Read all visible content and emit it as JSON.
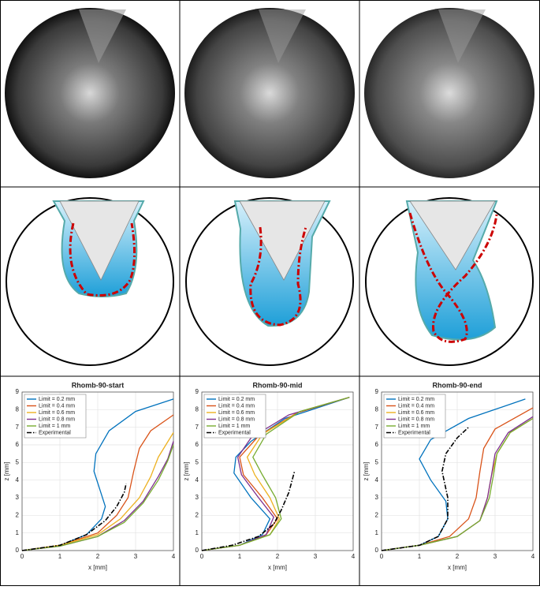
{
  "chart_data": [
    {
      "type": "line",
      "title": "Rhomb-90-start",
      "xlabel": "x [mm]",
      "ylabel": "z [mm]",
      "xlim": [
        0,
        4
      ],
      "ylim": [
        0,
        9
      ],
      "xticks": [
        0,
        1,
        2,
        3,
        4
      ],
      "yticks": [
        0,
        1,
        2,
        3,
        4,
        5,
        6,
        7,
        8,
        9
      ],
      "grid": true,
      "legend": "upper left",
      "series": [
        {
          "name": "Limit = 0.2 mm",
          "color": "#0072BD",
          "linestyle": "solid",
          "x": [
            0,
            1,
            1.7,
            2.1,
            2.2,
            2.05,
            1.9,
            1.95,
            2.3,
            3,
            4
          ],
          "values": [
            0,
            0.3,
            0.9,
            1.8,
            2.5,
            3.5,
            4.5,
            5.5,
            6.8,
            7.9,
            8.6
          ]
        },
        {
          "name": "Limit = 0.4 mm",
          "color": "#D95319",
          "linestyle": "solid",
          "x": [
            0,
            1,
            2,
            2.5,
            2.8,
            2.95,
            3.1,
            3.4,
            4
          ],
          "values": [
            0,
            0.3,
            1,
            2,
            3,
            4.5,
            5.8,
            6.8,
            7.7
          ]
        },
        {
          "name": "Limit = 0.6 mm",
          "color": "#EDB120",
          "linestyle": "solid",
          "x": [
            0,
            1,
            2,
            2.6,
            3.1,
            3.4,
            3.6,
            4
          ],
          "values": [
            0,
            0.3,
            0.9,
            1.8,
            3,
            4.2,
            5.3,
            6.7
          ]
        },
        {
          "name": "Limit = 0.8 mm",
          "color": "#7E2F8E",
          "linestyle": "solid",
          "x": [
            0,
            1,
            2,
            2.7,
            3.2,
            3.6,
            3.85,
            4
          ],
          "values": [
            0,
            0.25,
            0.8,
            1.7,
            2.8,
            4.2,
            5.2,
            6.2
          ]
        },
        {
          "name": "Limit = 1 mm",
          "color": "#77AC30",
          "linestyle": "solid",
          "x": [
            0,
            1,
            2,
            2.7,
            3.2,
            3.6,
            3.85,
            4
          ],
          "values": [
            0,
            0.25,
            0.8,
            1.6,
            2.7,
            4,
            5.1,
            6
          ]
        },
        {
          "name": "Experimental",
          "color": "#000000",
          "linestyle": "dashdot",
          "x": [
            0,
            1,
            1.7,
            2.2,
            2.5,
            2.7,
            2.75
          ],
          "values": [
            0,
            0.3,
            0.9,
            1.7,
            2.5,
            3.3,
            3.8
          ]
        }
      ]
    },
    {
      "type": "line",
      "title": "Rhomb-90-mid",
      "xlabel": "x [mm]",
      "ylabel": "z [mm]",
      "xlim": [
        0,
        4
      ],
      "ylim": [
        0,
        9
      ],
      "xticks": [
        0,
        1,
        2,
        3,
        4
      ],
      "yticks": [
        0,
        1,
        2,
        3,
        4,
        5,
        6,
        7,
        8,
        9
      ],
      "grid": true,
      "legend": "upper left",
      "series": [
        {
          "name": "Limit = 0.2 mm",
          "color": "#0072BD",
          "linestyle": "solid",
          "x": [
            0,
            1,
            1.6,
            1.8,
            1.3,
            0.85,
            0.9,
            1.3,
            2.2,
            3.9
          ],
          "values": [
            0,
            0.3,
            0.9,
            1.8,
            3,
            4.4,
            5.3,
            6.2,
            7.5,
            8.7
          ]
        },
        {
          "name": "Limit = 0.4 mm",
          "color": "#D95319",
          "linestyle": "solid",
          "x": [
            0,
            1,
            1.7,
            2,
            1.6,
            1.1,
            1,
            1.5,
            2.5,
            3.9
          ],
          "values": [
            0,
            0.3,
            0.9,
            1.8,
            3,
            4.3,
            5.3,
            6.5,
            7.8,
            8.7
          ]
        },
        {
          "name": "Limit = 0.6 mm",
          "color": "#EDB120",
          "linestyle": "solid",
          "x": [
            0,
            1,
            1.8,
            2.05,
            1.8,
            1.4,
            1.2,
            1.6,
            2.6,
            3.9
          ],
          "values": [
            0,
            0.3,
            0.9,
            1.8,
            3,
            4.3,
            5.3,
            6.6,
            7.9,
            8.7
          ]
        },
        {
          "name": "Limit = 0.8 mm",
          "color": "#7E2F8E",
          "linestyle": "solid",
          "x": [
            0,
            1,
            1.7,
            1.9,
            1.5,
            1.05,
            0.95,
            1.3,
            2.3,
            3.9
          ],
          "values": [
            0,
            0.3,
            0.9,
            1.9,
            3,
            4.3,
            5.3,
            6.4,
            7.7,
            8.7
          ]
        },
        {
          "name": "Limit = 1 mm",
          "color": "#77AC30",
          "linestyle": "solid",
          "x": [
            0,
            1,
            1.8,
            2.1,
            1.95,
            1.6,
            1.35,
            1.7,
            2.6,
            3.9
          ],
          "values": [
            0,
            0.3,
            0.9,
            1.8,
            3,
            4.3,
            5.3,
            6.6,
            7.9,
            8.7
          ]
        },
        {
          "name": "Experimental",
          "color": "#000000",
          "linestyle": "dashdot",
          "x": [
            0,
            0.8,
            1.5,
            1.9,
            2.1,
            2.3,
            2.45
          ],
          "values": [
            0,
            0.3,
            0.8,
            1.5,
            2.3,
            3.3,
            4.5
          ]
        }
      ]
    },
    {
      "type": "line",
      "title": "Rhomb-90-end",
      "xlabel": "x [mm]",
      "ylabel": "z [mm]",
      "xlim": [
        0,
        4
      ],
      "ylim": [
        0,
        9
      ],
      "xticks": [
        0,
        1,
        2,
        3,
        4
      ],
      "yticks": [
        0,
        1,
        2,
        3,
        4,
        5,
        6,
        7,
        8,
        9
      ],
      "grid": true,
      "legend": "upper left",
      "series": [
        {
          "name": "Limit = 0.2 mm",
          "color": "#0072BD",
          "linestyle": "solid",
          "x": [
            0,
            1,
            1.5,
            1.75,
            1.7,
            1.3,
            1,
            1.3,
            2.3,
            3.8
          ],
          "values": [
            0,
            0.3,
            0.8,
            1.8,
            2.8,
            4,
            5.2,
            6.3,
            7.5,
            8.6
          ]
        },
        {
          "name": "Limit = 0.4 mm",
          "color": "#D95319",
          "linestyle": "solid",
          "x": [
            0,
            1,
            1.8,
            2.3,
            2.5,
            2.6,
            2.7,
            3,
            4
          ],
          "values": [
            0,
            0.3,
            0.8,
            1.8,
            3,
            4.5,
            5.8,
            6.9,
            8.1
          ]
        },
        {
          "name": "Limit = 0.6 mm",
          "color": "#EDB120",
          "linestyle": "solid",
          "x": [
            0,
            1,
            2,
            2.6,
            2.8,
            2.9,
            3.05,
            3.4,
            4
          ],
          "values": [
            0,
            0.3,
            0.8,
            1.7,
            3,
            4.2,
            5.5,
            6.7,
            7.5
          ]
        },
        {
          "name": "Limit = 0.8 mm",
          "color": "#7E2F8E",
          "linestyle": "solid",
          "x": [
            0,
            1,
            2,
            2.6,
            2.8,
            2.9,
            3,
            3.35,
            4
          ],
          "values": [
            0,
            0.3,
            0.8,
            1.7,
            3,
            4.2,
            5.5,
            6.7,
            7.6
          ]
        },
        {
          "name": "Limit = 1 mm",
          "color": "#77AC30",
          "linestyle": "solid",
          "x": [
            0,
            1,
            2,
            2.6,
            2.85,
            2.95,
            3.05,
            3.4,
            4
          ],
          "values": [
            0,
            0.3,
            0.8,
            1.7,
            3,
            4.2,
            5.5,
            6.7,
            7.5
          ]
        },
        {
          "name": "Experimental",
          "color": "#000000",
          "linestyle": "dashdot",
          "x": [
            0,
            1,
            1.5,
            1.75,
            1.75,
            1.6,
            1.7,
            2,
            2.3
          ],
          "values": [
            0,
            0.3,
            0.8,
            1.8,
            3,
            4.5,
            5.5,
            6.4,
            7
          ]
        }
      ]
    }
  ]
}
